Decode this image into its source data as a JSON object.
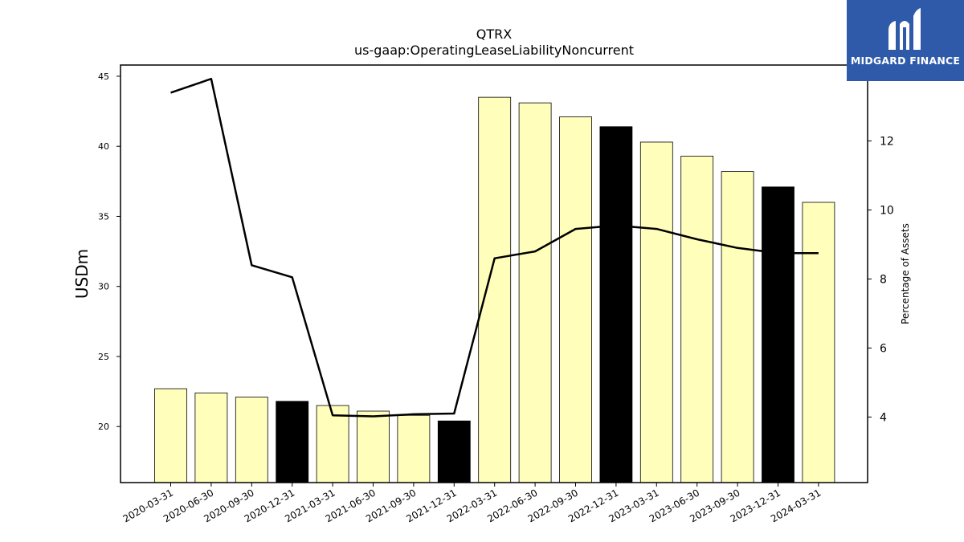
{
  "chart_data": {
    "type": "bar",
    "title": "QTRX",
    "subtitle": "us-gaap:OperatingLeaseLiabilityNoncurrent",
    "ylabel": "USDm",
    "y2label": "Percentage of Assets",
    "ylim": [
      16,
      45.8
    ],
    "y2lim": [
      2.1,
      14.2
    ],
    "yticks": [
      20,
      25,
      30,
      35,
      40,
      45
    ],
    "y2ticks": [
      4,
      6,
      8,
      10,
      12
    ],
    "categories": [
      "2020-03-31",
      "2020-06-30",
      "2020-09-30",
      "2020-12-31",
      "2021-03-31",
      "2021-06-30",
      "2021-09-30",
      "2021-12-31",
      "2022-03-31",
      "2022-06-30",
      "2022-09-30",
      "2022-12-31",
      "2023-03-31",
      "2023-06-30",
      "2023-09-30",
      "2023-12-31",
      "2024-03-31"
    ],
    "series": [
      {
        "type": "bar",
        "axis": "left",
        "values": [
          22.7,
          22.4,
          22.1,
          21.8,
          21.5,
          21.1,
          20.8,
          20.4,
          43.5,
          43.1,
          42.1,
          41.4,
          40.3,
          39.3,
          38.2,
          37.1,
          36.0
        ],
        "highlight": [
          false,
          false,
          false,
          true,
          false,
          false,
          false,
          true,
          false,
          false,
          false,
          true,
          false,
          false,
          false,
          true,
          false
        ]
      },
      {
        "type": "line",
        "axis": "right",
        "values": [
          13.4,
          13.8,
          8.4,
          8.05,
          4.05,
          4.02,
          4.08,
          4.1,
          8.6,
          8.8,
          9.45,
          9.55,
          9.45,
          9.15,
          8.9,
          8.75,
          8.75
        ]
      }
    ],
    "colors": {
      "bar": "#ffffbb",
      "bar_highlight": "#000000",
      "line": "#000000"
    }
  },
  "logo": {
    "text": "MIDGARD FINANCE"
  }
}
